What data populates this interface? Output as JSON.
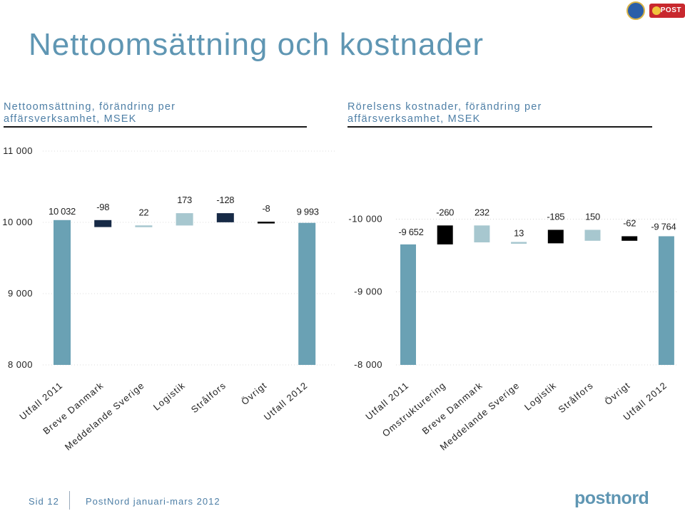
{
  "header": {
    "title": "Nettoomsättning och kostnader",
    "subtitle_left": [
      "Nettoomsättning, förändring per",
      "affärsverksamhet, MSEK"
    ],
    "subtitle_right": [
      "Rörelsens kostnader, förändring per",
      "affärsverksamhet, MSEK"
    ]
  },
  "logos": {
    "post_badge": "POST"
  },
  "footer": {
    "page": "Sid 12",
    "text": "PostNord januari-mars 2012",
    "brand": "postnord"
  },
  "colors": {
    "total": "#6aa1b4",
    "dark_navy": "#172a46",
    "light_blue": "#a7c7cf",
    "black": "#000000",
    "grid": "#bbbbbb"
  },
  "chart_data": [
    {
      "type": "waterfall",
      "title": "Nettoomsättning, förändring per affärsverksamhet, MSEK",
      "ylim": [
        8000,
        11000
      ],
      "yticks": [
        {
          "value": 11000,
          "label": "11 000"
        },
        {
          "value": 10000,
          "label": "10 000"
        },
        {
          "value": 9000,
          "label": "9 000"
        },
        {
          "value": 8000,
          "label": "8 000"
        }
      ],
      "categories": [
        "Utfall 2011",
        "Breve Danmark",
        "Meddelande Sverige",
        "Logistik",
        "Strålfors",
        "Övrigt",
        "Utfall 2012"
      ],
      "steps": [
        {
          "category": "Utfall 2011",
          "kind": "total",
          "value": 10032,
          "label": "10 032",
          "color": "#6aa1b4"
        },
        {
          "category": "Breve Danmark",
          "kind": "delta",
          "value": -98,
          "label": "-98",
          "color": "#172a46"
        },
        {
          "category": "Meddelande Sverige",
          "kind": "delta",
          "value": 22,
          "label": "22",
          "color": "#a7c7cf"
        },
        {
          "category": "Logistik",
          "kind": "delta",
          "value": 173,
          "label": "173",
          "color": "#a7c7cf"
        },
        {
          "category": "Strålfors",
          "kind": "delta",
          "value": -128,
          "label": "-128",
          "color": "#172a46"
        },
        {
          "category": "Övrigt",
          "kind": "delta",
          "value": -8,
          "label": "-8",
          "color": "#000000"
        },
        {
          "category": "Utfall 2012",
          "kind": "total",
          "value": 9993,
          "label": "9 993",
          "color": "#6aa1b4"
        }
      ]
    },
    {
      "type": "waterfall",
      "title": "Rörelsens kostnader, förändring per affärsverksamhet, MSEK",
      "ylim": [
        -8000,
        -11000
      ],
      "yticks": [
        {
          "value": -10000,
          "label": "-10 000"
        },
        {
          "value": -9000,
          "label": "-9 000"
        },
        {
          "value": -8000,
          "label": "-8 000"
        }
      ],
      "categories": [
        "Utfall 2011",
        "Omstrukturering",
        "Breve Danmark",
        "Meddelande Sverige",
        "Logistik",
        "Strålfors",
        "Övrigt",
        "Utfall 2012"
      ],
      "steps": [
        {
          "category": "Utfall 2011",
          "kind": "total",
          "value": -9652,
          "label": "-9 652",
          "color": "#6aa1b4"
        },
        {
          "category": "Omstrukturering",
          "kind": "delta",
          "value": -260,
          "label": "-260",
          "color": "#000000"
        },
        {
          "category": "Breve Danmark",
          "kind": "delta",
          "value": 232,
          "label": "232",
          "color": "#a7c7cf"
        },
        {
          "category": "Meddelande Sverige",
          "kind": "delta",
          "value": 13,
          "label": "13",
          "color": "#a7c7cf"
        },
        {
          "category": "Logistik",
          "kind": "delta",
          "value": -185,
          "label": "-185",
          "color": "#000000"
        },
        {
          "category": "Strålfors",
          "kind": "delta",
          "value": 150,
          "label": "150",
          "color": "#a7c7cf"
        },
        {
          "category": "Övrigt",
          "kind": "delta",
          "value": -62,
          "label": "-62",
          "color": "#000000"
        },
        {
          "category": "Utfall 2012",
          "kind": "total",
          "value": -9764,
          "label": "-9 764",
          "color": "#6aa1b4"
        }
      ]
    }
  ]
}
